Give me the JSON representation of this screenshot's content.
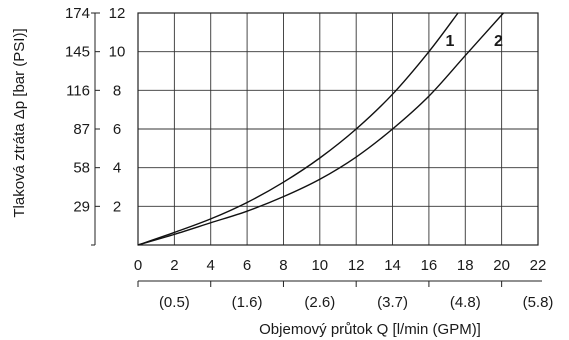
{
  "chart_data": {
    "type": "line",
    "xlabel": "Objemový průtok Q [l/min (GPM)]",
    "ylabel": "Tlaková ztráta Δp [bar (PSI)]",
    "xlim": [
      0,
      22
    ],
    "ylim": [
      0,
      12
    ],
    "grid": true,
    "x_ticks": [
      "0",
      "2",
      "4",
      "6",
      "8",
      "10",
      "12",
      "14",
      "16",
      "18",
      "20",
      "22"
    ],
    "x_secondary_ticks": [
      "(0.5)",
      "(1.6)",
      "(2.6)",
      "(3.7)",
      "(4.8)",
      "(5.8)"
    ],
    "y_ticks_bar": [
      "2",
      "4",
      "6",
      "8",
      "10",
      "12"
    ],
    "y_ticks_psi": [
      "29",
      "58",
      "87",
      "116",
      "145",
      "174"
    ],
    "series": [
      {
        "name": "1",
        "x": [
          0,
          2,
          4,
          6,
          8,
          10,
          12,
          14,
          16,
          17.6
        ],
        "y": [
          0,
          0.65,
          1.35,
          2.2,
          3.25,
          4.5,
          6.0,
          7.8,
          10.0,
          12.0
        ]
      },
      {
        "name": "2",
        "x": [
          0,
          2,
          4,
          6,
          8,
          10,
          12,
          14,
          16,
          18,
          20.1
        ],
        "y": [
          0,
          0.55,
          1.15,
          1.75,
          2.5,
          3.4,
          4.55,
          6.0,
          7.7,
          9.8,
          12.0
        ]
      }
    ]
  }
}
